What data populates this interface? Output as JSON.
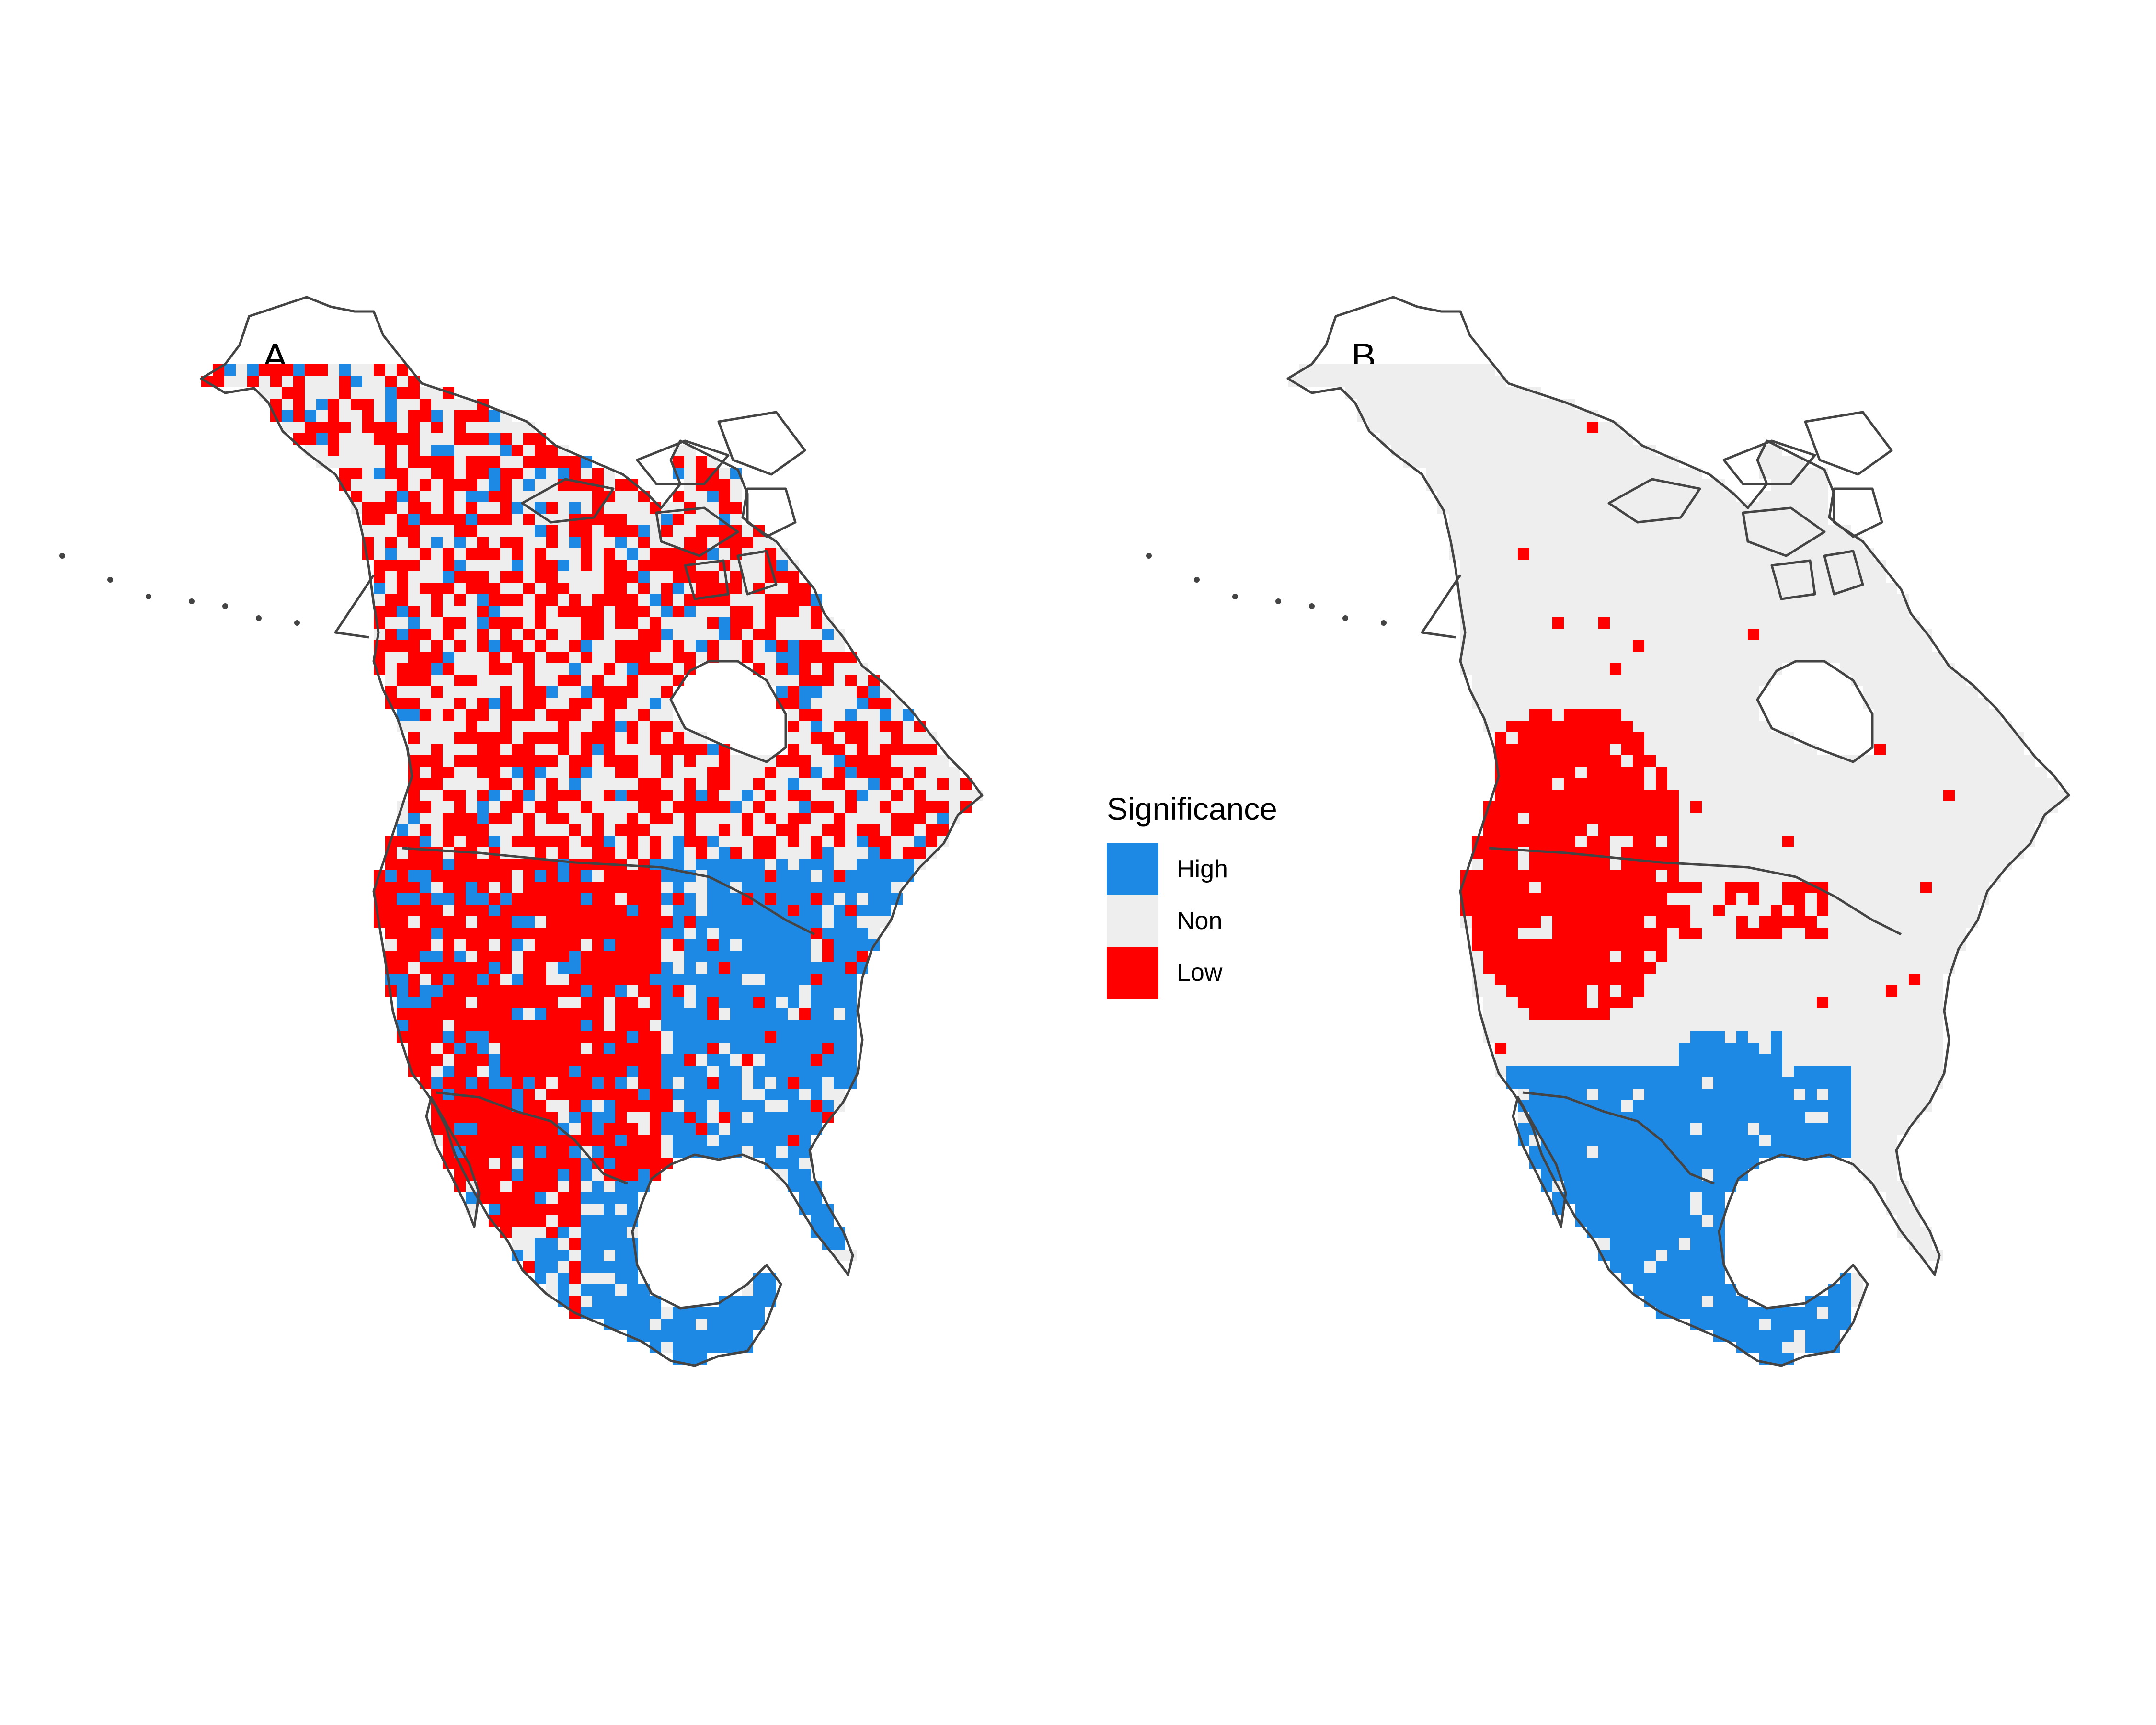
{
  "panels": [
    {
      "label": "A"
    },
    {
      "label": "B"
    }
  ],
  "legend": {
    "title": "Significance",
    "items": [
      {
        "label": "High",
        "color": "#1e88e5"
      },
      {
        "label": "Non",
        "color": "#eeeeee"
      },
      {
        "label": "Low",
        "color": "#ff0000"
      }
    ]
  },
  "map": {
    "region": "North America",
    "outline_color": "#444444"
  }
}
